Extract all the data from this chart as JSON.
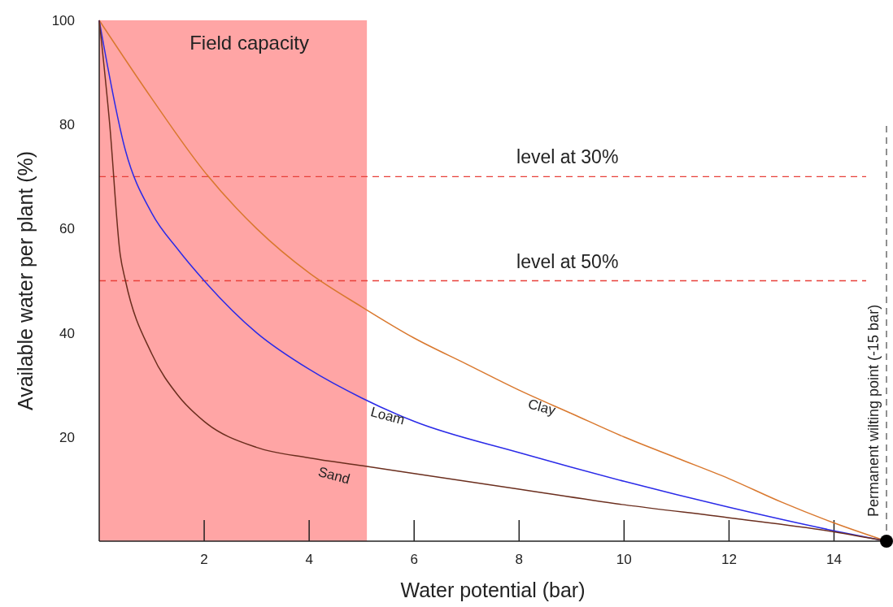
{
  "chart_data": {
    "type": "line",
    "xlabel": "Water potential (bar)",
    "ylabel": "Available water per plant (%)",
    "xlim": [
      0,
      15
    ],
    "ylim": [
      0,
      100
    ],
    "xticks": [
      2,
      4,
      6,
      8,
      10,
      12,
      14
    ],
    "yticks": [
      20,
      40,
      60,
      80,
      100
    ],
    "grid": false,
    "bands": [
      {
        "axis": "x",
        "from": 0,
        "to": 5.1,
        "label": "Field capacity",
        "color": "#ffa5a5"
      }
    ],
    "ref_lines": [
      {
        "axis": "y",
        "value": 70,
        "label": "level at 30%",
        "color": "#e8403a",
        "line_style": "dashed"
      },
      {
        "axis": "y",
        "value": 50,
        "label": "level at 50%",
        "color": "#e8403a",
        "line_style": "dashed"
      },
      {
        "axis": "x",
        "value": 15,
        "label": "Permanent wilting point (-15 bar)",
        "color": "#555555",
        "line_style": "dashed"
      }
    ],
    "series": [
      {
        "name": "Clay",
        "color": "#d9782e",
        "x": [
          0,
          1,
          2,
          3,
          4,
          5,
          6,
          7,
          8,
          9,
          10,
          11,
          12,
          13,
          14,
          15
        ],
        "values": [
          100,
          85,
          71,
          60,
          51.5,
          45,
          39,
          34,
          29,
          24.5,
          20,
          16,
          12,
          7.5,
          3.5,
          0
        ]
      },
      {
        "name": "Loam",
        "color": "#2a2ae8",
        "x": [
          0,
          0.5,
          1,
          1.5,
          2,
          3,
          4,
          5,
          6,
          8,
          10,
          12,
          14,
          15
        ],
        "values": [
          100,
          75,
          63,
          56,
          50,
          40,
          33,
          27.5,
          23,
          17,
          11.5,
          6.5,
          2,
          0
        ]
      },
      {
        "name": "Sand",
        "color": "#6b2e1e",
        "x": [
          0,
          0.2,
          0.4,
          0.5,
          1,
          1.5,
          2,
          3,
          4,
          5,
          6,
          8,
          10,
          12,
          14,
          15
        ],
        "values": [
          100,
          80,
          55,
          50,
          36,
          28,
          23,
          18,
          16,
          14.5,
          13,
          10,
          7,
          4.5,
          1.8,
          0
        ]
      },
      {
        "type": "scatter",
        "color": "#000000",
        "x": [
          15
        ],
        "values": [
          0
        ]
      }
    ]
  }
}
